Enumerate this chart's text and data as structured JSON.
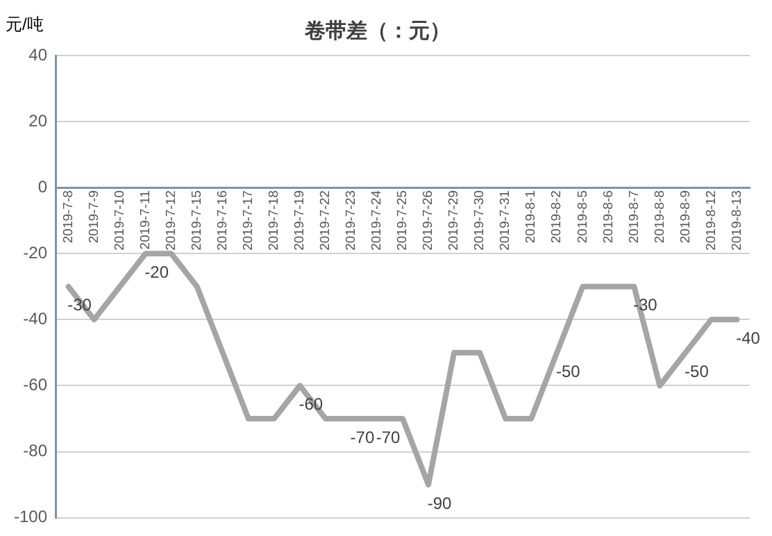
{
  "chart_data": {
    "type": "line",
    "title": "卷带差（：元）",
    "ylabel": "元/吨",
    "categories": [
      "2019-7-8",
      "2019-7-9",
      "2019-7-10",
      "2019-7-11",
      "2019-7-12",
      "2019-7-15",
      "2019-7-16",
      "2019-7-17",
      "2019-7-18",
      "2019-7-19",
      "2019-7-22",
      "2019-7-23",
      "2019-7-24",
      "2019-7-25",
      "2019-7-26",
      "2019-7-29",
      "2019-7-30",
      "2019-7-31",
      "2019-8-1",
      "2019-8-2",
      "2019-8-5",
      "2019-8-6",
      "2019-8-7",
      "2019-8-8",
      "2019-8-9",
      "2019-8-12",
      "2019-8-13"
    ],
    "values": [
      -30,
      -40,
      -30,
      -20,
      -20,
      -30,
      -50,
      -70,
      -70,
      -60,
      -70,
      -70,
      -70,
      -70,
      -90,
      -50,
      -50,
      -70,
      -70,
      -50,
      -30,
      -30,
      -30,
      -60,
      -50,
      -40,
      -40
    ],
    "value_labels": [
      "-30",
      null,
      null,
      "-20",
      null,
      null,
      null,
      null,
      null,
      "-60",
      null,
      "-70",
      "-70",
      null,
      "-90",
      null,
      null,
      null,
      null,
      "-50",
      null,
      null,
      "-30",
      null,
      "-50",
      null,
      "-40"
    ],
    "color": "#a5a5a5",
    "ylim": [
      -100,
      40
    ],
    "yticks": [
      -100,
      -80,
      -60,
      -40,
      -20,
      0,
      20,
      40
    ],
    "grid": "y",
    "legend": false,
    "marker": "none",
    "line_style": "solid"
  }
}
